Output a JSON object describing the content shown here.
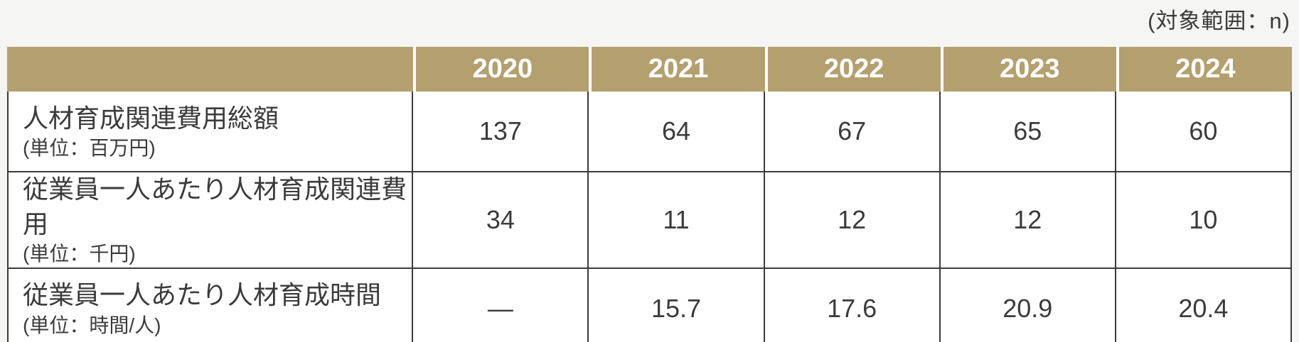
{
  "note": "(対象範囲：n)",
  "table": {
    "corner": "",
    "year_headers": [
      "2020",
      "2021",
      "2022",
      "2023",
      "2024"
    ],
    "rows": [
      {
        "label": "人材育成関連費用総額",
        "unit": "(単位：百万円)",
        "values": [
          "137",
          "64",
          "67",
          "65",
          "60"
        ]
      },
      {
        "label": "従業員一人あたり人材育成関連費用",
        "unit": "(単位：千円)",
        "values": [
          "34",
          "11",
          "12",
          "12",
          "10"
        ]
      },
      {
        "label": "従業員一人あたり人材育成時間",
        "unit": "(単位：時間/人)",
        "values": [
          "—",
          "15.7",
          "17.6",
          "20.9",
          "20.4"
        ]
      }
    ]
  },
  "colors": {
    "header_bg": "#b4a06e",
    "header_text": "#ffffff",
    "page_bg": "#f5f5f4",
    "text": "#3b3b3b",
    "border": "#3b3b3b"
  },
  "chart_data": {
    "type": "table",
    "columns": [
      "",
      "2020",
      "2021",
      "2022",
      "2023",
      "2024"
    ],
    "rows": [
      [
        "人材育成関連費用総額 (単位：百万円)",
        137,
        64,
        67,
        65,
        60
      ],
      [
        "従業員一人あたり人材育成関連費用 (単位：千円)",
        34,
        11,
        12,
        12,
        10
      ],
      [
        "従業員一人あたり人材育成時間 (単位：時間/人)",
        null,
        15.7,
        17.6,
        20.9,
        20.4
      ]
    ],
    "annotations": [
      "(対象範囲：n)"
    ],
    "missing_value_symbol": "—"
  }
}
